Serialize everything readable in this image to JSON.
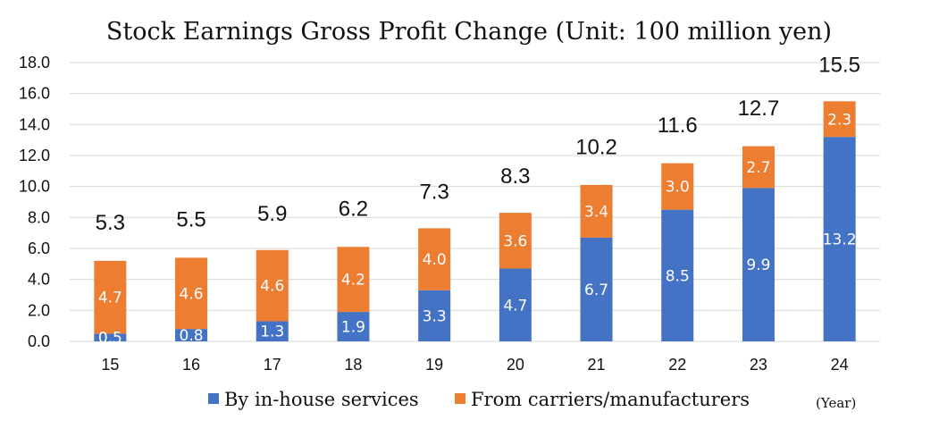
{
  "colors": {
    "series1": "#4472C4",
    "series2": "#ED7D31"
  },
  "chart_data": {
    "type": "bar",
    "stacked": true,
    "title": "Stock Earnings Gross Profit Change (Unit: 100 million yen)",
    "x_unit_label": "(Year)",
    "categories": [
      "15",
      "16",
      "17",
      "18",
      "19",
      "20",
      "21",
      "22",
      "23",
      "24"
    ],
    "series": [
      {
        "name": "By in-house services",
        "values": [
          0.5,
          0.8,
          1.3,
          1.9,
          3.3,
          4.7,
          6.7,
          8.5,
          9.9,
          13.2
        ]
      },
      {
        "name": "From carriers/manufacturers",
        "values": [
          4.7,
          4.6,
          4.6,
          4.2,
          4.0,
          3.6,
          3.4,
          3.0,
          2.7,
          2.3
        ]
      }
    ],
    "totals": [
      5.3,
      5.5,
      5.9,
      6.2,
      7.3,
      8.3,
      10.2,
      11.6,
      12.7,
      15.5
    ],
    "ylim": [
      0,
      18
    ],
    "yticks": [
      "0.0",
      "2.0",
      "4.0",
      "6.0",
      "8.0",
      "10.0",
      "12.0",
      "14.0",
      "16.0",
      "18.0"
    ],
    "grid": true,
    "legend_position": "bottom"
  }
}
